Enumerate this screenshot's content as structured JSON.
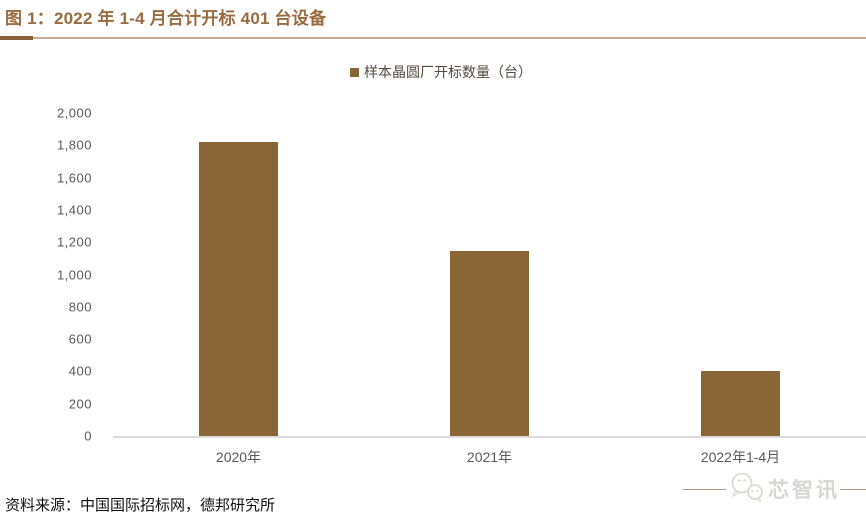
{
  "figure": {
    "title": "图 1：2022 年 1-4 月合计开标 401 台设备",
    "source_note": "资料来源：中国国际招标网，德邦研究所",
    "watermark": "芯智讯"
  },
  "colors": {
    "bar": "#8A6536",
    "title": "#9A6B41",
    "rule_dark": "#8A6039",
    "rule_light": "#C9AC93",
    "axis_text": "#595959",
    "axis_line": "#DCDCDC",
    "watermark_gray": "#D9D5D0",
    "watermark_line": "#B39B82"
  },
  "chart_data": {
    "type": "bar",
    "title": "图 1：2022 年 1-4 月合计开标 401 台设备",
    "legend": [
      "样本晶圆厂开标数量（台）"
    ],
    "legend_position": "top-center",
    "categories": [
      "2020年",
      "2021年",
      "2022年1-4月"
    ],
    "series": [
      {
        "name": "样本晶圆厂开标数量（台）",
        "values": [
          1822,
          1147,
          401
        ]
      }
    ],
    "xlabel": "",
    "ylabel": "",
    "ylim": [
      0,
      2000
    ],
    "ytick_step": 200,
    "yticks": [
      "0",
      "200",
      "400",
      "600",
      "800",
      "1,000",
      "1,200",
      "1,400",
      "1,600",
      "1,800",
      "2,000"
    ],
    "grid": false
  }
}
